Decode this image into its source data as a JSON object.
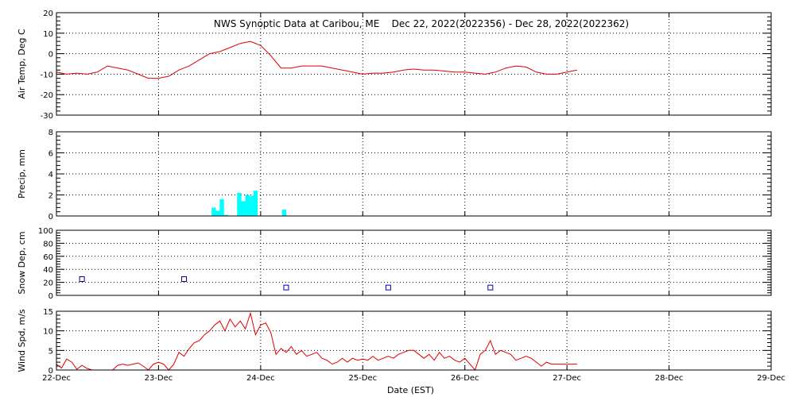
{
  "title": "NWS Synoptic Data at Caribou, ME    Dec 22, 2022(2022356) - Dec 28, 2022(2022362)",
  "colors": {
    "temp": "#dd0000",
    "precip": "#00ffff",
    "snow": "#0000aa",
    "wind": "#dd0000",
    "frame": "#000000"
  },
  "chart_data": [
    {
      "type": "line",
      "name": "air-temp",
      "ylabel": "Air Temp, Deg C",
      "ylim": [
        -30,
        20
      ],
      "yticks": [
        -30,
        -20,
        -10,
        0,
        10,
        20
      ],
      "grid": true,
      "x": [
        0,
        0.1,
        0.2,
        0.3,
        0.4,
        0.5,
        0.6,
        0.7,
        0.8,
        0.9,
        1.0,
        1.1,
        1.2,
        1.3,
        1.4,
        1.5,
        1.6,
        1.7,
        1.8,
        1.9,
        2.0,
        2.1,
        2.2,
        2.3,
        2.4,
        2.5,
        2.6,
        2.7,
        2.75,
        2.8,
        2.9,
        3.0,
        3.1,
        3.2,
        3.3,
        3.4,
        3.5,
        3.6,
        3.7,
        3.8,
        3.9,
        4.0,
        4.1,
        4.2,
        4.3,
        4.4,
        4.5,
        4.6,
        4.7,
        4.8,
        4.9,
        5.0,
        5.1
      ],
      "y": [
        -9,
        -10,
        -9.5,
        -10,
        -9,
        -6,
        -7,
        -8,
        -10,
        -12,
        -12,
        -11,
        -8,
        -6,
        -3,
        0,
        1,
        3,
        5,
        6,
        4,
        -1,
        -7,
        -7,
        -6,
        -6,
        -6,
        -7,
        -7.5,
        -8,
        -9,
        -10,
        -9.5,
        -9.5,
        -9,
        -8,
        -7.5,
        -8,
        -8,
        -8.5,
        -9,
        -9,
        -9.5,
        -10,
        -9,
        -7,
        -6,
        -6.5,
        -9,
        -10,
        -10,
        -9,
        -8
      ]
    },
    {
      "type": "bar",
      "name": "precip",
      "ylabel": "Precip, mm",
      "ylim": [
        0,
        8
      ],
      "yticks": [
        0,
        2,
        4,
        6,
        8
      ],
      "grid": true,
      "bar_width_days": 0.0417,
      "x": [
        1.54,
        1.58,
        1.62,
        1.66,
        1.79,
        1.83,
        1.87,
        1.91,
        1.95,
        2.23
      ],
      "values": [
        0.8,
        0.5,
        1.6,
        0.1,
        2.2,
        1.4,
        2.0,
        1.9,
        2.4,
        0.6
      ]
    },
    {
      "type": "scatter",
      "name": "snow-depth",
      "ylabel": "Snow Dep, cm",
      "ylim": [
        0,
        100
      ],
      "yticks": [
        0,
        20,
        40,
        60,
        80,
        100
      ],
      "grid": true,
      "x": [
        0.25,
        1.25,
        2.25,
        3.25,
        4.25
      ],
      "y": [
        25,
        25,
        12,
        12,
        12
      ]
    },
    {
      "type": "line",
      "name": "wind-speed",
      "ylabel": "Wind Spd, m/s",
      "ylim": [
        0,
        15
      ],
      "yticks": [
        0,
        5,
        10,
        15
      ],
      "grid": true,
      "xlabel": "Date (EST)",
      "xticklabels": [
        "22-Dec",
        "23-Dec",
        "24-Dec",
        "25-Dec",
        "26-Dec",
        "27-Dec",
        "28-Dec",
        "29-Dec"
      ],
      "x": [
        0,
        0.05,
        0.1,
        0.15,
        0.2,
        0.25,
        0.3,
        0.35,
        0.4,
        0.45,
        0.5,
        0.55,
        0.6,
        0.65,
        0.7,
        0.75,
        0.8,
        0.85,
        0.9,
        0.95,
        1.0,
        1.05,
        1.1,
        1.15,
        1.2,
        1.25,
        1.3,
        1.35,
        1.4,
        1.45,
        1.5,
        1.55,
        1.6,
        1.65,
        1.7,
        1.75,
        1.8,
        1.85,
        1.9,
        1.95,
        2.0,
        2.05,
        2.1,
        2.15,
        2.2,
        2.25,
        2.3,
        2.35,
        2.4,
        2.45,
        2.5,
        2.55,
        2.6,
        2.65,
        2.7,
        2.75,
        2.8,
        2.85,
        2.9,
        2.95,
        3.0,
        3.05,
        3.1,
        3.15,
        3.2,
        3.25,
        3.3,
        3.35,
        3.4,
        3.45,
        3.5,
        3.55,
        3.6,
        3.65,
        3.7,
        3.75,
        3.8,
        3.85,
        3.9,
        3.95,
        4.0,
        4.05,
        4.1,
        4.15,
        4.2,
        4.25,
        4.3,
        4.35,
        4.4,
        4.45,
        4.5,
        4.55,
        4.6,
        4.65,
        4.7,
        4.75,
        4.8,
        4.85,
        4.9,
        4.95,
        5.0,
        5.05,
        5.1
      ],
      "y": [
        1.5,
        0.5,
        2.8,
        2.0,
        0.2,
        1.2,
        0.4,
        0.0,
        0.0,
        0.0,
        0.0,
        0.0,
        1.2,
        1.5,
        1.2,
        1.5,
        1.8,
        1.0,
        0.0,
        1.5,
        2.0,
        1.5,
        0.0,
        1.5,
        4.5,
        3.5,
        5.5,
        7.0,
        7.5,
        9.0,
        10.0,
        11.5,
        12.5,
        10.0,
        13.0,
        11.0,
        12.5,
        10.5,
        14.5,
        9.0,
        11.5,
        12.0,
        9.5,
        4.0,
        5.5,
        4.5,
        6.0,
        4.0,
        5.0,
        3.5,
        4.0,
        4.5,
        3.0,
        2.5,
        1.5,
        2.0,
        3.0,
        2.0,
        3.0,
        2.5,
        2.8,
        2.5,
        3.5,
        2.5,
        3.0,
        3.5,
        3.0,
        4.0,
        4.5,
        5.0,
        5.0,
        4.0,
        3.0,
        4.0,
        2.5,
        4.5,
        3.0,
        3.5,
        2.5,
        2.0,
        3.0,
        1.5,
        0.0,
        4.0,
        5.0,
        7.5,
        4.0,
        5.0,
        4.5,
        4.0,
        2.5,
        3.0,
        3.5,
        3.0,
        2.0,
        1.0,
        2.0,
        1.5,
        1.5,
        1.5,
        1.5,
        1.5,
        1.5
      ]
    }
  ]
}
